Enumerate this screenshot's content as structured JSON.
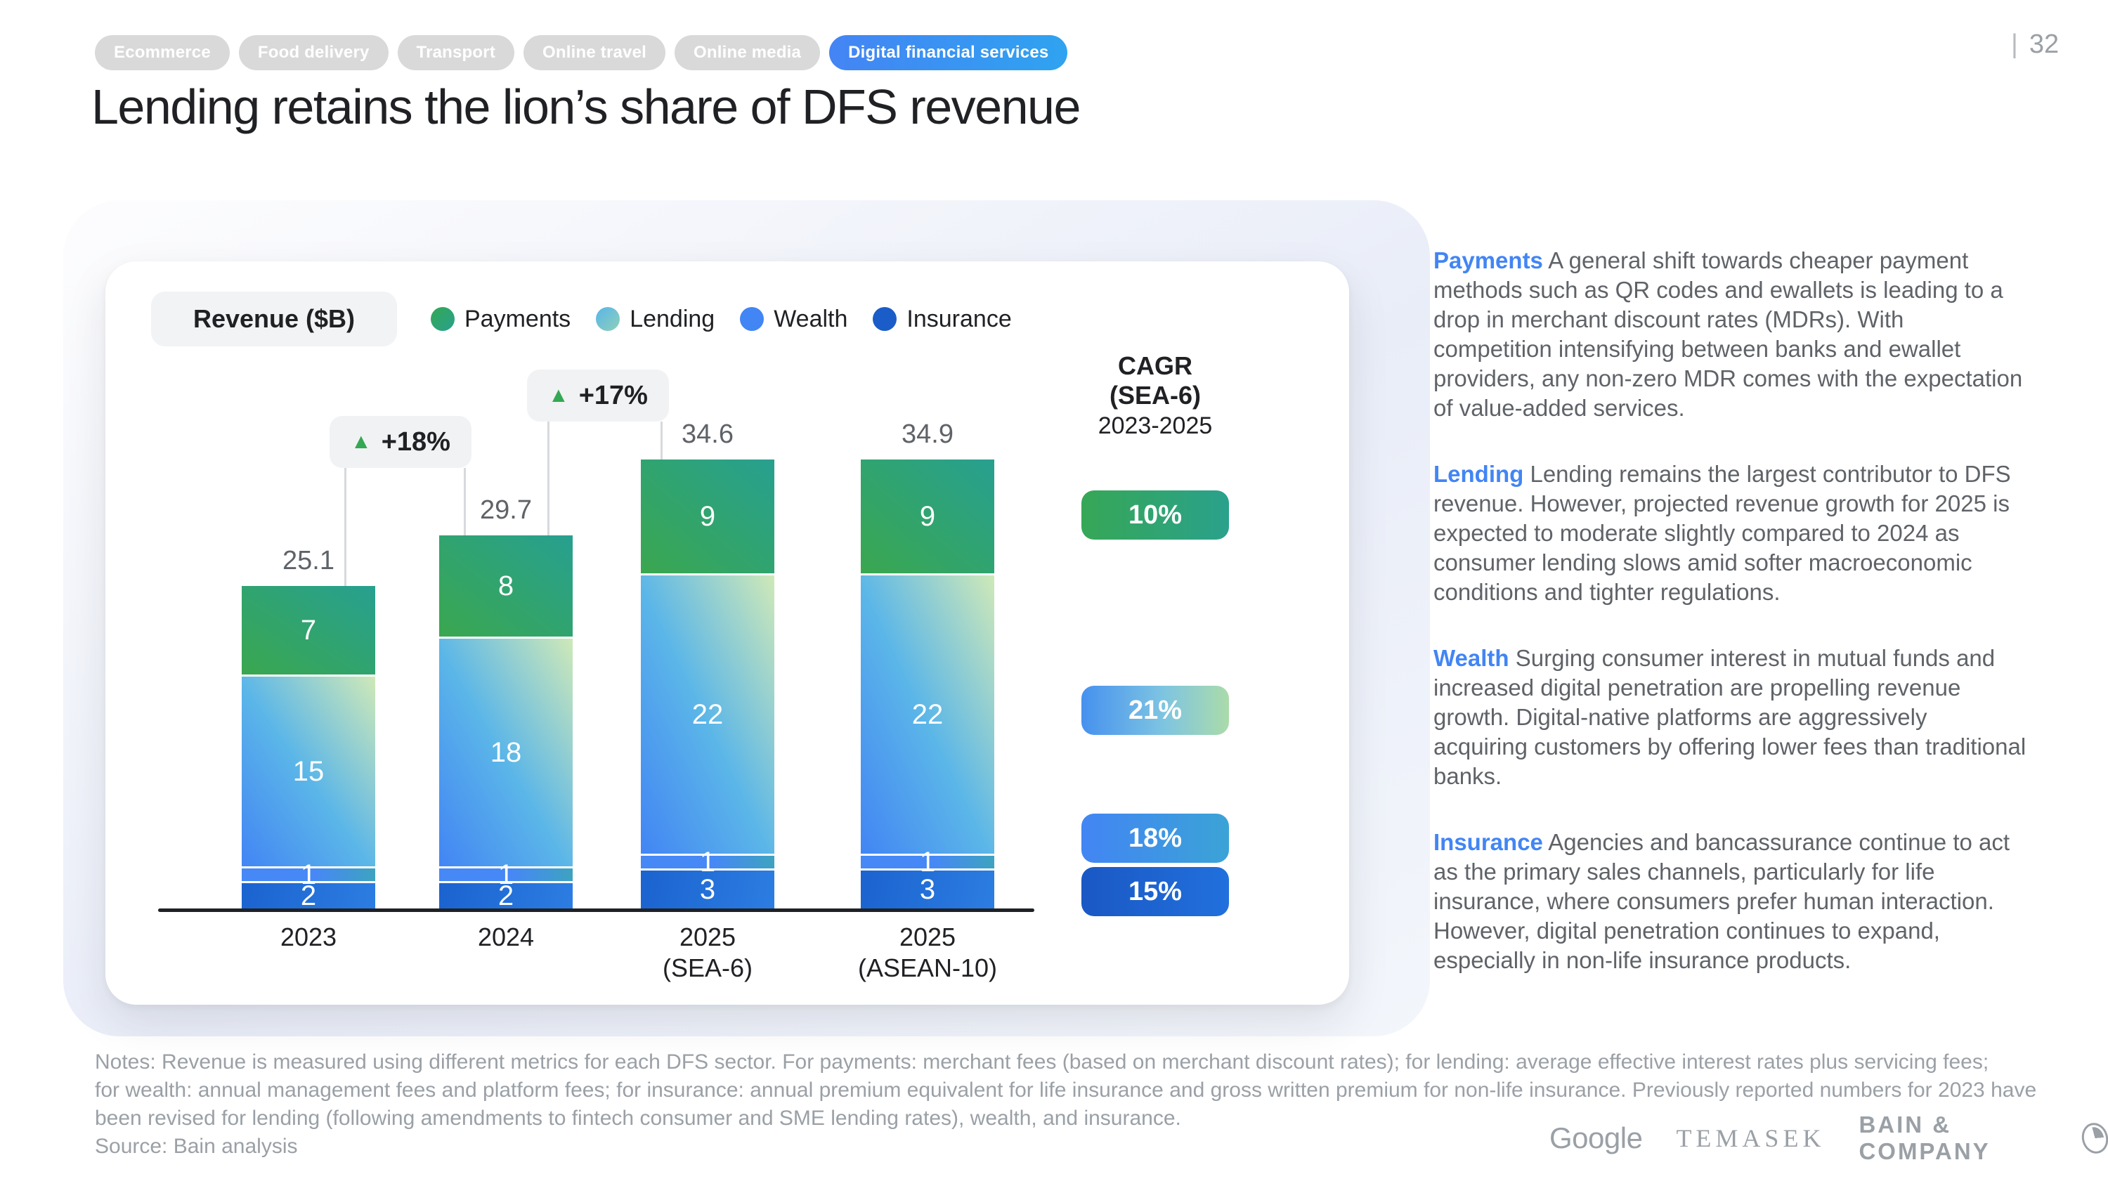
{
  "page": {
    "number": "32",
    "separator": "|"
  },
  "tabs": [
    {
      "label": "Ecommerce",
      "active": false
    },
    {
      "label": "Food delivery",
      "active": false
    },
    {
      "label": "Transport",
      "active": false
    },
    {
      "label": "Online travel",
      "active": false
    },
    {
      "label": "Online media",
      "active": false
    },
    {
      "label": "Digital financial services",
      "active": true
    }
  ],
  "title": "Lending retains the lion’s share of DFS revenue",
  "chart": {
    "revenue_label": "Revenue ($B)",
    "legend": [
      {
        "label": "Payments",
        "key": "payments",
        "color": "#34a853"
      },
      {
        "label": "Lending",
        "key": "lending",
        "color": "#58b5e9"
      },
      {
        "label": "Wealth",
        "key": "wealth",
        "color": "#4285f4"
      },
      {
        "label": "Insurance",
        "key": "insurance",
        "color": "#1a5dc8"
      }
    ]
  },
  "chart_data": {
    "type": "bar",
    "stacked": true,
    "title": "Revenue ($B)",
    "unit": "$B",
    "grid": false,
    "legend_position": "top",
    "categories": [
      "2023",
      "2024",
      "2025 (SEA-6)",
      "2025 (ASEAN-10)"
    ],
    "category_lines": [
      [
        "2023"
      ],
      [
        "2024"
      ],
      [
        "2025",
        "(SEA-6)"
      ],
      [
        "2025",
        "(ASEAN-10)"
      ]
    ],
    "series": [
      {
        "name": "Payments",
        "key": "payments",
        "values": [
          7,
          8,
          9,
          9
        ]
      },
      {
        "name": "Lending",
        "key": "lending",
        "values": [
          15,
          18,
          22,
          22
        ]
      },
      {
        "name": "Wealth",
        "key": "wealth",
        "values": [
          1,
          1,
          1,
          1
        ]
      },
      {
        "name": "Insurance",
        "key": "insurance",
        "values": [
          2,
          2,
          3,
          3
        ]
      }
    ],
    "totals": [
      "25.1",
      "29.7",
      "34.6",
      "34.9"
    ],
    "growth_callouts": [
      {
        "from": "2023",
        "to": "2024",
        "label": "+18%"
      },
      {
        "from": "2024",
        "to": "2025 (SEA-6)",
        "label": "+17%"
      }
    ],
    "cagr": {
      "title": "CAGR",
      "region": "(SEA-6)",
      "period": "2023-2025",
      "pills": [
        {
          "series": "Payments",
          "key": "payments",
          "label": "10%"
        },
        {
          "series": "Lending",
          "key": "lending",
          "label": "21%"
        },
        {
          "series": "Wealth",
          "key": "wealth",
          "label": "18%"
        },
        {
          "series": "Insurance",
          "key": "insurance",
          "label": "15%"
        }
      ]
    }
  },
  "panels": [
    {
      "heading": "Payments",
      "body": "A general shift towards cheaper payment methods such as QR codes and ewallets is leading to a drop in merchant discount rates (MDRs). With competition intensifying between banks and ewallet providers, any non-zero MDR comes with the expectation of value-added services."
    },
    {
      "heading": "Lending",
      "body": "Lending remains the largest contributor to DFS revenue. However, projected revenue growth for 2025 is expected to moderate slightly compared to 2024 as consumer lending slows amid softer macroeconomic conditions and tighter regulations."
    },
    {
      "heading": "Wealth",
      "body": "Surging consumer interest in mutual funds and increased digital penetration are propelling revenue growth. Digital-native platforms are aggressively acquiring customers by offering lower fees than traditional banks."
    },
    {
      "heading": "Insurance",
      "body": "Agencies and bancassurance continue to act as the primary sales channels, particularly for life insurance, where consumers prefer human interaction. However, digital penetration continues to expand, especially in non-life insurance products."
    }
  ],
  "notes_lines": [
    "Notes: Revenue is measured using different metrics for each DFS sector. For payments: merchant fees (based on merchant discount rates); for lending: average effective interest rates plus servicing fees;",
    "for wealth: annual management fees and platform fees; for insurance: annual premium equivalent for life insurance and gross written premium for non-life insurance. Previously reported numbers for 2023 have",
    "been revised for lending (following amendments to fintech consumer and SME lending rates), wealth, and insurance."
  ],
  "source": "Source: Bain analysis",
  "footer": {
    "logos": [
      "Google",
      "TEMASEK",
      "BAIN & COMPANY"
    ]
  },
  "colors": {
    "accent_blue": "#4285f4",
    "green": "#34a853",
    "teal": "#27a090",
    "light_blue": "#5bb6e8",
    "pale_green": "#cfe9b8",
    "dark_blue": "#1a5dc8",
    "text_dark": "#202124",
    "text_gray": "#5f6368",
    "text_light": "#9aa0a6",
    "tab_gray": "#d9d9d9",
    "pill_gray": "#f1f3f4"
  }
}
